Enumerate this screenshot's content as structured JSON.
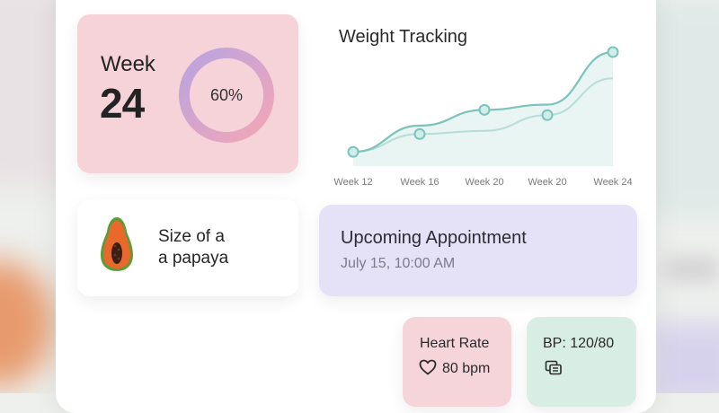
{
  "week": {
    "label": "Week",
    "number": "24",
    "progress_text": "60%",
    "progress": 0.6
  },
  "chart": {
    "title": "Weight Tracking",
    "tick_labels": [
      "Week 12",
      "Week 16",
      "Week 20",
      "Week 20",
      "Week 24"
    ]
  },
  "chart_data": {
    "type": "line",
    "title": "Weight Tracking",
    "categories": [
      "Week 12",
      "Week 16",
      "Week 20",
      "Week 20",
      "Week 24"
    ],
    "series": [
      {
        "values": [
          0.05,
          0.3,
          0.45,
          0.5,
          1.0
        ]
      },
      {
        "values": [
          0.05,
          0.22,
          0.25,
          0.4,
          0.75
        ]
      }
    ],
    "ylim": [
      0,
      1
    ],
    "grid": false,
    "colors": {
      "primary": "#7cc2bd",
      "secondary": "#b6ddd8"
    }
  },
  "size": {
    "line1": "Size of a",
    "line2": "a papaya"
  },
  "appointment": {
    "title": "Upcoming Appointment",
    "date": "July 15, 10:00 AM"
  },
  "heart_rate": {
    "title": "Heart Rate",
    "value": "80 bpm",
    "icon": "heart-icon"
  },
  "blood_pressure": {
    "title": "BP: 120/80",
    "icon": "monitor-icon"
  },
  "colors": {
    "week_card": "#f5d3d9",
    "ring_start": "#f4a6b6",
    "ring_end": "#b9a3e0",
    "appointment_card": "#e5e1f6",
    "bp_card": "#d8ede3"
  }
}
